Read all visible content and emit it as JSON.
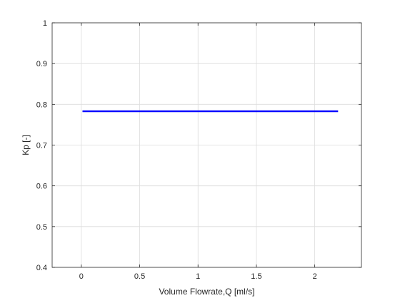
{
  "chart_data": {
    "type": "line",
    "title": "",
    "xlabel": "Volume Flowrate,Q [ml/s]",
    "ylabel": "Kp [-]",
    "xlim": [
      -0.25,
      2.4
    ],
    "ylim": [
      0.4,
      1.0
    ],
    "xticks": [
      0,
      0.5,
      1,
      1.5,
      2
    ],
    "xtick_labels": [
      "0",
      "0.5",
      "1",
      "1.5",
      "2"
    ],
    "yticks": [
      0.4,
      0.5,
      0.6,
      0.7,
      0.8,
      0.9,
      1.0
    ],
    "ytick_labels": [
      "0.4",
      "0.5",
      "0.6",
      "0.7",
      "0.8",
      "0.9",
      "1"
    ],
    "grid": true,
    "legend": "none",
    "series": [
      {
        "color": "#0000ff",
        "x": [
          0.01,
          0.5,
          1.0,
          1.5,
          2.2
        ],
        "y": [
          0.783,
          0.783,
          0.783,
          0.783,
          0.783
        ]
      }
    ]
  }
}
